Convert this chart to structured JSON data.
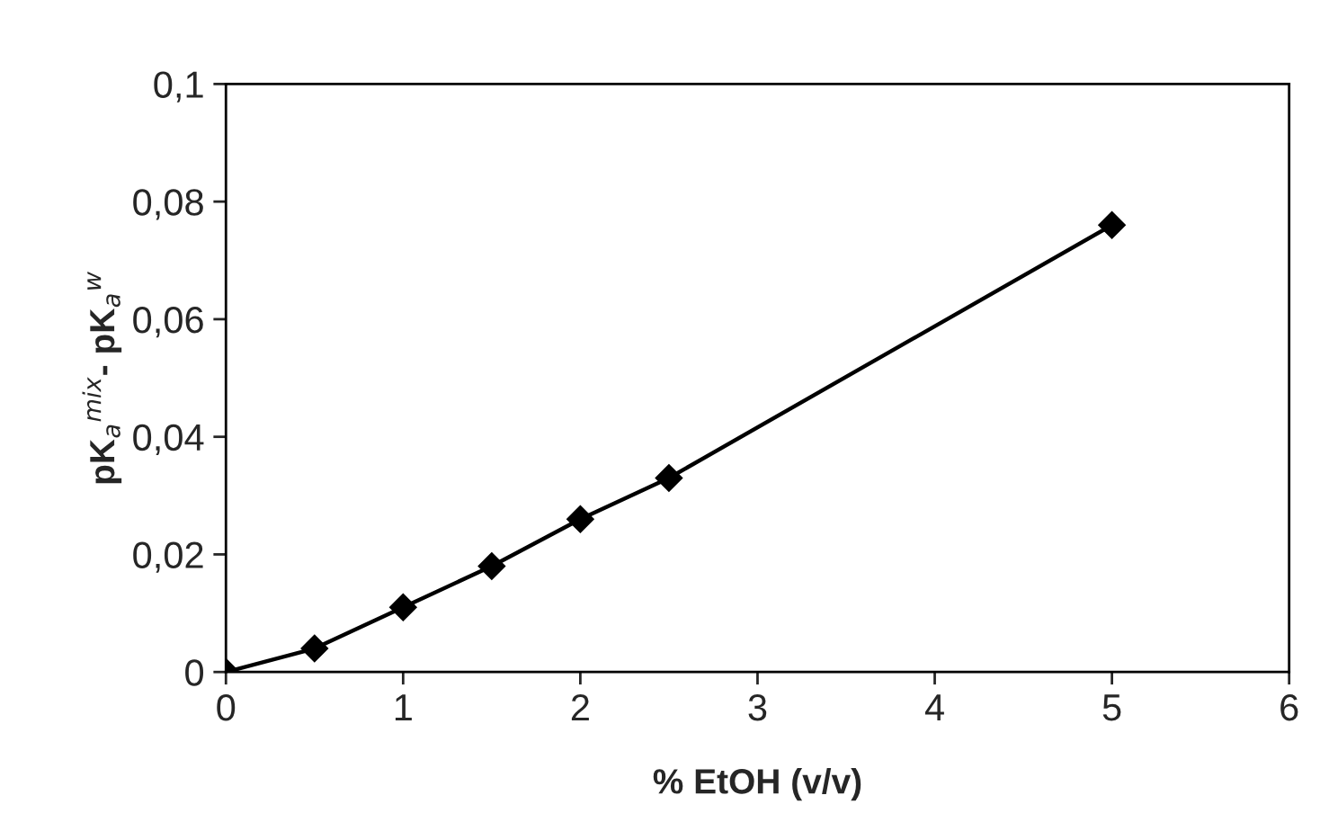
{
  "chart_data": {
    "type": "line",
    "xlabel": "% EtOH (v/v)",
    "ylabel": "pK$_{a}$$^{mix}$- pK$_{a}$$^{w}$",
    "series": [
      {
        "color": "#000000",
        "x": [
          0,
          0.5,
          1,
          1.5,
          2,
          2.5,
          5
        ],
        "values": [
          0,
          0.004,
          0.011,
          0.018,
          0.026,
          0.033,
          0.076
        ]
      }
    ],
    "xlim": [
      0,
      6
    ],
    "xticks": [
      0,
      1,
      2,
      3,
      4,
      5,
      6
    ],
    "ylim": [
      0,
      0.1
    ],
    "yticks": [
      0,
      {
        "value": 0.02,
        "label": "0,02"
      },
      {
        "value": 0.04,
        "label": "0,04"
      },
      {
        "value": 0.06,
        "label": "0,06"
      },
      {
        "value": 0.08,
        "label": "0,08"
      },
      {
        "value": 0.1,
        "label": "0,1"
      }
    ],
    "grid": false,
    "legend": false,
    "marker": "diamond",
    "line_style": "solid"
  }
}
